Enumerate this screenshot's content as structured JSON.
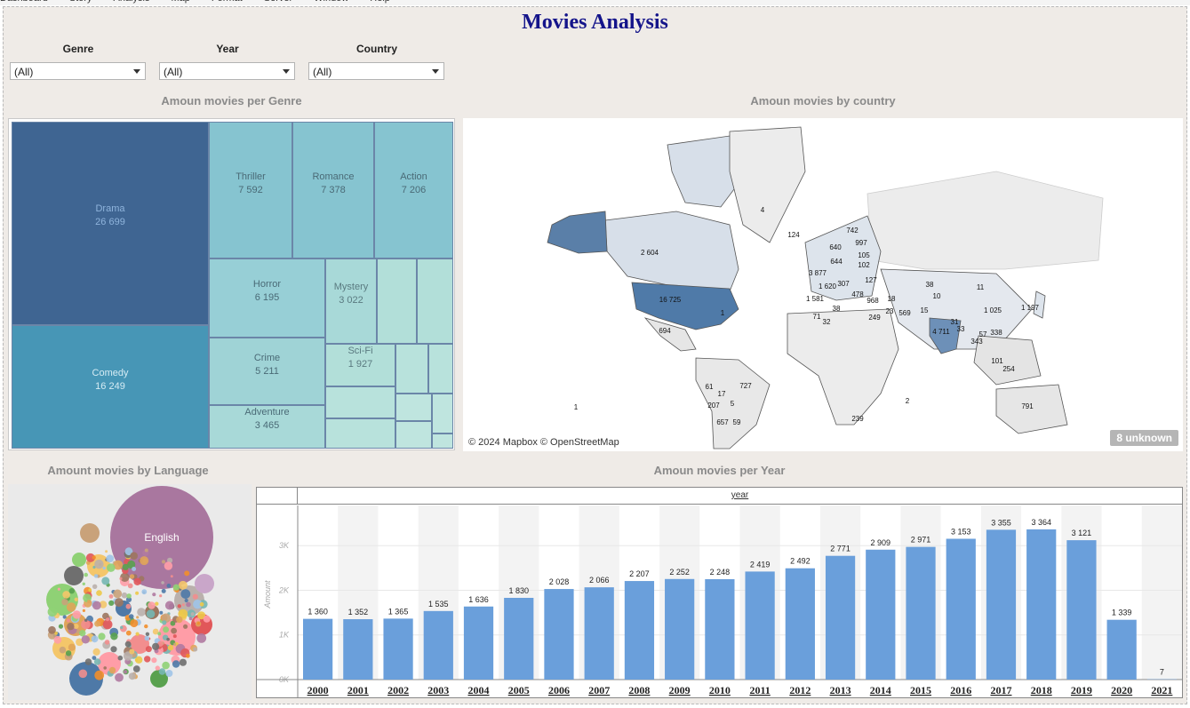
{
  "menubar": [
    "Dashboard",
    "Story",
    "Analysis",
    "Map",
    "Format",
    "Server",
    "Window",
    "Help"
  ],
  "title": "Movies Analysis",
  "filters": [
    {
      "label": "Genre",
      "value": "(All)"
    },
    {
      "label": "Year",
      "value": "(All)"
    },
    {
      "label": "Country",
      "value": "(All)"
    }
  ],
  "genre": {
    "title": "Amoun movies per Genre",
    "items": [
      {
        "name": "Drama",
        "value": "26 699"
      },
      {
        "name": "Comedy",
        "value": "16 249"
      },
      {
        "name": "Thriller",
        "value": "7 592"
      },
      {
        "name": "Romance",
        "value": "7 378"
      },
      {
        "name": "Action",
        "value": "7 206"
      },
      {
        "name": "Horror",
        "value": "6 195"
      },
      {
        "name": "Mystery",
        "value": "3 022"
      },
      {
        "name": "Crime",
        "value": "5 211"
      },
      {
        "name": "Sci-Fi",
        "value": "1 927"
      },
      {
        "name": "Adventure",
        "value": "3 465"
      }
    ]
  },
  "country": {
    "title": "Amoun movies by country",
    "credit": "© 2024 Mapbox © OpenStreetMap",
    "unknown": "8 unknown",
    "labels": [
      "2 604",
      "16 725",
      "4",
      "124",
      "742",
      "997",
      "105",
      "102",
      "640",
      "644",
      "3 877",
      "1 620",
      "307",
      "127",
      "1 581",
      "478",
      "968",
      "38",
      "18",
      "23",
      "71",
      "32",
      "249",
      "569",
      "15",
      "10",
      "38",
      "11",
      "1 025",
      "1 197",
      "694",
      "1",
      "4 711",
      "31",
      "33",
      "57",
      "338",
      "343",
      "101",
      "254",
      "2",
      "1",
      "727",
      "61",
      "17",
      "207",
      "5",
      "657",
      "59",
      "791",
      "239"
    ]
  },
  "language": {
    "title": "Amount movies by Language",
    "top_label": "English"
  },
  "years": {
    "title": "Amoun movies per Year",
    "header": "year",
    "axis_title": "Amount",
    "ticks": [
      "0K",
      "1K",
      "2K",
      "3K"
    ]
  },
  "chart_data": {
    "type": "bar",
    "title": "Amoun movies per Year",
    "xlabel": "year",
    "ylabel": "Amount",
    "ylim": [
      0,
      3700
    ],
    "categories": [
      "2000",
      "2001",
      "2002",
      "2003",
      "2004",
      "2005",
      "2006",
      "2007",
      "2008",
      "2009",
      "2010",
      "2011",
      "2012",
      "2013",
      "2014",
      "2015",
      "2016",
      "2017",
      "2018",
      "2019",
      "2020",
      "2021"
    ],
    "values": [
      1360,
      1352,
      1365,
      1535,
      1636,
      1830,
      2028,
      2066,
      2207,
      2252,
      2248,
      2419,
      2492,
      2771,
      2909,
      2971,
      3153,
      3355,
      3364,
      3121,
      1339,
      7
    ],
    "value_labels": [
      "1 360",
      "1 352",
      "1 365",
      "1 535",
      "1 636",
      "1 830",
      "2 028",
      "2 066",
      "2 207",
      "2 252",
      "2 248",
      "2 419",
      "2 492",
      "2 771",
      "2 909",
      "2 971",
      "3 153",
      "3 355",
      "3 364",
      "3 121",
      "1 339",
      "7"
    ],
    "color": "#6a9fdb"
  }
}
